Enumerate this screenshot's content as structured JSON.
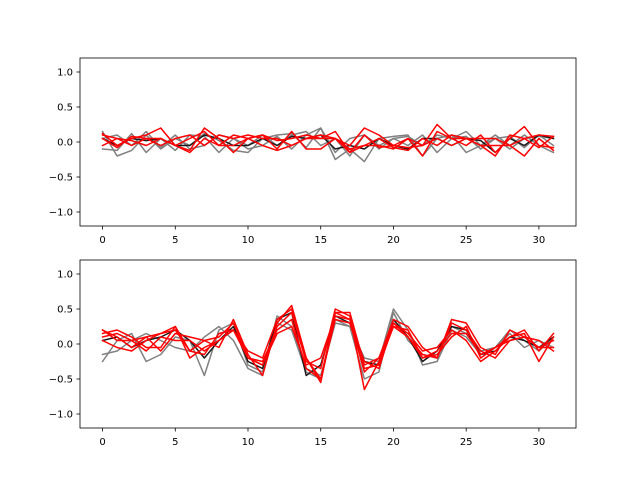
{
  "chart_data": [
    {
      "type": "line",
      "title": "",
      "xlabel": "",
      "ylabel": "",
      "xlim": [
        -1.55,
        32.55
      ],
      "ylim": [
        -1.2,
        1.2
      ],
      "xticks": [
        0,
        5,
        10,
        15,
        20,
        25,
        30
      ],
      "yticks": [
        -1.0,
        -0.5,
        0.0,
        0.5,
        1.0
      ],
      "xtick_labels": [
        "0",
        "5",
        "10",
        "15",
        "20",
        "25",
        "30"
      ],
      "ytick_labels": [
        "−1.0",
        "−0.5",
        "0.0",
        "0.5",
        "1.0"
      ],
      "grid": false,
      "colors": {
        "gray": "#808080",
        "dark": "#1a1a1a",
        "red": "#ff0000"
      },
      "x": [
        0,
        1,
        2,
        3,
        4,
        5,
        6,
        7,
        8,
        9,
        10,
        11,
        12,
        13,
        14,
        15,
        16,
        17,
        18,
        19,
        20,
        21,
        22,
        23,
        24,
        25,
        26,
        27,
        28,
        29,
        30,
        31
      ],
      "series": [
        {
          "color": "gray",
          "values": [
            0.15,
            -0.2,
            -0.12,
            0.1,
            -0.1,
            0.05,
            -0.05,
            0.12,
            0.02,
            -0.12,
            -0.15,
            0.05,
            0.1,
            0.12,
            -0.08,
            0.2,
            -0.25,
            -0.1,
            -0.28,
            0.05,
            0.08,
            0.1,
            -0.2,
            0.05,
            0.1,
            -0.15,
            -0.05,
            0.1,
            -0.05,
            0.1,
            -0.05,
            -0.15
          ]
        },
        {
          "color": "gray",
          "values": [
            -0.1,
            -0.12,
            0.12,
            -0.15,
            0.05,
            -0.12,
            0.1,
            0.08,
            -0.15,
            0.05,
            -0.05,
            0.1,
            -0.05,
            0.1,
            0.15,
            -0.05,
            0.05,
            -0.2,
            0.1,
            -0.1,
            0.05,
            -0.05,
            0.1,
            -0.15,
            0.05,
            0.08,
            -0.1,
            0.05,
            0.08,
            -0.08,
            0.1,
            -0.05
          ]
        },
        {
          "color": "gray",
          "values": [
            0.05,
            0.1,
            -0.05,
            0.15,
            -0.08,
            0.1,
            -0.1,
            -0.05,
            0.1,
            0.05,
            -0.1,
            -0.05,
            0.08,
            -0.1,
            0.1,
            0.2,
            -0.15,
            0.05,
            0.1,
            -0.05,
            0.05,
            0.08,
            -0.05,
            0.1,
            0.05,
            0.15,
            -0.05,
            0.05,
            -0.1,
            0.05,
            0.08,
            0.05
          ]
        },
        {
          "color": "dark",
          "values": [
            0.05,
            -0.05,
            0.05,
            0.02,
            0.05,
            -0.05,
            -0.05,
            0.1,
            0.05,
            -0.05,
            -0.05,
            0.05,
            -0.05,
            0.08,
            0.05,
            0.1,
            -0.1,
            -0.05,
            -0.1,
            0.05,
            -0.05,
            -0.1,
            0.05,
            0.05,
            -0.05,
            0.05,
            0.02,
            -0.15,
            0.05,
            -0.05,
            0.1,
            0.05
          ]
        },
        {
          "color": "red",
          "values": [
            0.12,
            -0.05,
            0.05,
            0.1,
            0.2,
            -0.05,
            -0.12,
            0.2,
            0.05,
            -0.15,
            0.05,
            0.1,
            -0.1,
            0.15,
            -0.1,
            -0.1,
            0.05,
            -0.05,
            0.2,
            0.1,
            -0.05,
            0.05,
            -0.05,
            0.25,
            0.05,
            -0.05,
            0.1,
            -0.15,
            0.05,
            0.22,
            -0.05,
            -0.08
          ]
        },
        {
          "color": "red",
          "values": [
            0.05,
            -0.08,
            0.08,
            0.05,
            -0.05,
            0.05,
            0.1,
            -0.05,
            0.1,
            0.05,
            0.1,
            0.05,
            0.05,
            -0.05,
            0.05,
            0.05,
            0.15,
            -0.15,
            -0.05,
            0.05,
            -0.08,
            -0.12,
            0.05,
            -0.05,
            0.1,
            0.05,
            -0.05,
            -0.2,
            0.1,
            0.05,
            -0.08,
            0.08
          ]
        },
        {
          "color": "red",
          "values": [
            0.1,
            0.05,
            -0.05,
            0.05,
            0.05,
            -0.05,
            0.05,
            0.15,
            -0.05,
            0.1,
            0.05,
            0.1,
            0.02,
            0.05,
            0.1,
            0.05,
            0.05,
            -0.1,
            -0.05,
            -0.05,
            -0.1,
            0.05,
            -0.2,
            0.15,
            0.05,
            0.05,
            0.05,
            0.05,
            -0.05,
            0.05,
            0.1,
            0.08
          ]
        },
        {
          "color": "red",
          "values": [
            -0.05,
            0.05,
            0.02,
            -0.05,
            0.05,
            -0.05,
            -0.15,
            0.05,
            -0.05,
            -0.05,
            0.05,
            -0.05,
            -0.12,
            -0.05,
            0.05,
            0.1,
            0.05,
            -0.15,
            0.1,
            -0.08,
            -0.05,
            -0.08,
            -0.05,
            0.05,
            -0.05,
            0.05,
            -0.05,
            -0.05,
            -0.05,
            -0.2,
            0.05,
            -0.12
          ]
        }
      ]
    },
    {
      "type": "line",
      "title": "",
      "xlabel": "",
      "ylabel": "",
      "xlim": [
        -1.55,
        32.55
      ],
      "ylim": [
        -1.2,
        1.2
      ],
      "xticks": [
        0,
        5,
        10,
        15,
        20,
        25,
        30
      ],
      "yticks": [
        -1.0,
        -0.5,
        0.0,
        0.5,
        1.0
      ],
      "xtick_labels": [
        "0",
        "5",
        "10",
        "15",
        "20",
        "25",
        "30"
      ],
      "ytick_labels": [
        "−1.0",
        "−0.5",
        "0.0",
        "0.5",
        "1.0"
      ],
      "grid": false,
      "colors": {
        "gray": "#808080",
        "dark": "#1a1a1a",
        "red": "#ff0000"
      },
      "x": [
        0,
        1,
        2,
        3,
        4,
        5,
        6,
        7,
        8,
        9,
        10,
        11,
        12,
        13,
        14,
        15,
        16,
        17,
        18,
        19,
        20,
        21,
        22,
        23,
        24,
        25,
        26,
        27,
        28,
        29,
        30,
        31
      ],
      "series": [
        {
          "color": "gray",
          "values": [
            -0.25,
            0.05,
            0.15,
            -0.25,
            -0.15,
            0.1,
            0.05,
            -0.45,
            0.2,
            0.3,
            -0.3,
            -0.4,
            0.4,
            0.25,
            -0.35,
            -0.45,
            0.3,
            0.25,
            -0.2,
            -0.25,
            0.5,
            0.2,
            -0.3,
            -0.25,
            0.2,
            0.1,
            -0.15,
            -0.05,
            0.2,
            0.05,
            -0.1,
            0.1
          ]
        },
        {
          "color": "gray",
          "values": [
            -0.15,
            -0.1,
            0.05,
            0.15,
            0.05,
            -0.05,
            -0.1,
            0.1,
            0.25,
            0.05,
            -0.35,
            -0.45,
            0.3,
            0.2,
            -0.4,
            -0.5,
            0.35,
            0.25,
            -0.5,
            -0.4,
            0.45,
            0.05,
            -0.15,
            -0.2,
            0.25,
            0.15,
            -0.1,
            -0.05,
            0.15,
            -0.05,
            0.05,
            -0.05
          ]
        },
        {
          "color": "dark",
          "values": [
            0.05,
            0.1,
            -0.05,
            0.05,
            0.1,
            0.2,
            0.05,
            -0.2,
            0.05,
            0.25,
            -0.25,
            -0.35,
            0.35,
            0.45,
            -0.45,
            -0.3,
            0.4,
            0.3,
            -0.25,
            -0.3,
            0.35,
            0.1,
            -0.25,
            -0.1,
            0.25,
            0.2,
            -0.15,
            -0.1,
            0.1,
            0.05,
            -0.05,
            0.1
          ]
        },
        {
          "color": "red",
          "values": [
            0.2,
            0.1,
            -0.05,
            0.1,
            0.15,
            0.2,
            -0.1,
            0.05,
            0.1,
            0.3,
            -0.2,
            -0.3,
            0.25,
            0.45,
            -0.25,
            -0.35,
            0.5,
            0.4,
            -0.65,
            -0.25,
            0.25,
            0.2,
            -0.2,
            -0.15,
            0.1,
            0.25,
            -0.2,
            -0.05,
            0.05,
            0.1,
            0.05,
            -0.1
          ]
        },
        {
          "color": "red",
          "values": [
            0.15,
            0.2,
            0.1,
            -0.05,
            -0.05,
            0.25,
            -0.2,
            -0.05,
            0.05,
            0.2,
            -0.1,
            -0.2,
            0.35,
            0.5,
            -0.2,
            -0.5,
            0.45,
            0.35,
            -0.4,
            -0.2,
            0.35,
            0.25,
            -0.05,
            -0.2,
            0.35,
            0.3,
            -0.05,
            -0.15,
            0.2,
            0.1,
            -0.05,
            0.05
          ]
        },
        {
          "color": "red",
          "values": [
            0.1,
            0.15,
            0.05,
            0.1,
            -0.1,
            0.15,
            0.1,
            0.05,
            -0.05,
            0.35,
            -0.15,
            -0.45,
            0.3,
            0.55,
            -0.2,
            -0.55,
            0.45,
            0.45,
            -0.3,
            -0.2,
            0.3,
            0.15,
            -0.1,
            -0.05,
            0.2,
            0.05,
            -0.25,
            -0.1,
            0.1,
            0.15,
            -0.25,
            0.1
          ]
        },
        {
          "color": "red",
          "values": [
            0.05,
            -0.05,
            -0.1,
            0.05,
            0.15,
            0.25,
            -0.1,
            -0.15,
            0.15,
            0.2,
            -0.2,
            -0.25,
            0.2,
            0.35,
            -0.35,
            -0.5,
            0.35,
            0.3,
            -0.35,
            -0.3,
            0.25,
            0.1,
            -0.15,
            -0.2,
            0.3,
            0.2,
            -0.1,
            -0.2,
            0.05,
            0.1,
            -0.05,
            -0.05
          ]
        },
        {
          "color": "red",
          "values": [
            0.2,
            0.05,
            0.05,
            -0.1,
            0.1,
            0.05,
            0.05,
            -0.1,
            0.05,
            0.2,
            -0.2,
            -0.3,
            0.15,
            0.25,
            -0.3,
            -0.2,
            0.4,
            0.35,
            -0.25,
            -0.35,
            0.3,
            0.1,
            -0.2,
            -0.1,
            0.15,
            0.15,
            -0.15,
            -0.05,
            0.1,
            0.2,
            -0.1,
            0.15
          ]
        }
      ]
    }
  ]
}
